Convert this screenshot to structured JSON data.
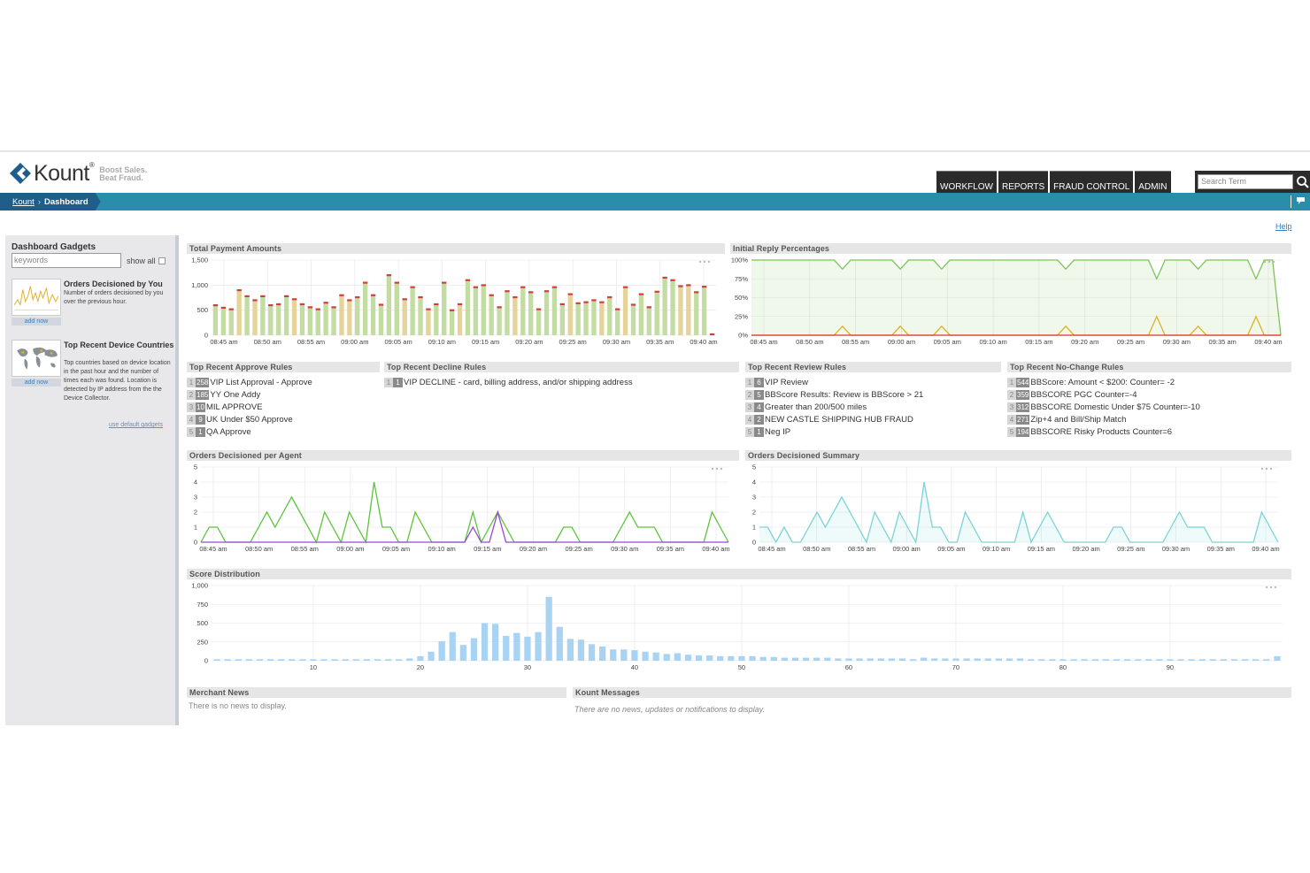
{
  "header": {
    "brand": "Kount",
    "tagline_1": "Boost Sales.",
    "tagline_2": "Beat Fraud.",
    "nav": [
      "WORKFLOW",
      "REPORTS",
      "FRAUD CONTROL",
      "ADMIN"
    ],
    "search_placeholder": "Search Term",
    "icons": {
      "search": "search-icon",
      "feedback": "comment-icon",
      "logo": "kount-logo-icon"
    }
  },
  "breadcrumb": {
    "root": "Kount",
    "current": "Dashboard"
  },
  "help_label": "Help",
  "sidebar": {
    "title": "Dashboard Gadgets",
    "search_placeholder": "keywords",
    "show_all_label": "show all",
    "gadgets": [
      {
        "title": "Orders Decisioned by You",
        "description": "Number of orders decisioned by you over the previous hour.",
        "add_label": "add now"
      },
      {
        "title": "Top Recent Device Countries",
        "description": "Top countries based on device location in the past hour and the number of times each was found. Location is detected by IP address from the the Device Collector.",
        "add_label": "add now"
      }
    ],
    "default_link": "use default gadgets"
  },
  "time_ticks": [
    "08:45 am",
    "08:50 am",
    "08:55 am",
    "09:00 am",
    "09:05 am",
    "09:10 am",
    "09:15 am",
    "09:20 am",
    "09:25 am",
    "09:30 am",
    "09:35 am",
    "09:40 am"
  ],
  "charts": {
    "payment": {
      "title": "Total Payment Amounts",
      "chart_data": {
        "type": "bar",
        "ylim": [
          0,
          1500
        ],
        "yticks": [
          "1,500",
          "1,000",
          "500",
          "0"
        ],
        "ytick_values": [
          1500,
          1000,
          500,
          0
        ],
        "values": [
          600,
          550,
          520,
          900,
          780,
          700,
          780,
          600,
          620,
          780,
          720,
          620,
          560,
          520,
          650,
          560,
          800,
          700,
          760,
          1050,
          800,
          610,
          1200,
          1050,
          720,
          960,
          760,
          520,
          620,
          1050,
          500,
          620,
          1100,
          960,
          1000,
          800,
          560,
          880,
          760,
          960,
          860,
          520,
          880,
          960,
          620,
          820,
          640,
          660,
          700,
          660,
          760,
          520,
          960,
          610,
          820,
          560,
          870,
          1150,
          1100,
          980,
          1000,
          860,
          970,
          20
        ],
        "grid": true
      }
    },
    "reply": {
      "title": "Initial Reply Percentages",
      "chart_data": {
        "type": "area",
        "ylim": [
          0,
          100
        ],
        "yticks": [
          "100%",
          "75%",
          "50%",
          "25%",
          "0%"
        ],
        "ytick_values": [
          100,
          75,
          50,
          25,
          0
        ],
        "series": [
          {
            "color": "#7cc45a",
            "values": [
              100,
              100,
              100,
              100,
              100,
              100,
              100,
              100,
              100,
              100,
              100,
              88,
              100,
              100,
              100,
              100,
              100,
              100,
              88,
              100,
              100,
              100,
              100,
              88,
              100,
              100,
              100,
              100,
              100,
              100,
              100,
              100,
              100,
              100,
              100,
              100,
              100,
              100,
              88,
              100,
              100,
              100,
              100,
              100,
              100,
              100,
              100,
              100,
              100,
              75,
              100,
              100,
              100,
              100,
              88,
              100,
              100,
              100,
              100,
              100,
              100,
              75,
              100,
              100,
              0
            ]
          },
          {
            "color": "#e0b020",
            "values": [
              0,
              0,
              0,
              0,
              0,
              0,
              0,
              0,
              0,
              0,
              0,
              12,
              0,
              0,
              0,
              0,
              0,
              0,
              12,
              0,
              0,
              0,
              0,
              12,
              0,
              0,
              0,
              0,
              0,
              0,
              0,
              0,
              0,
              0,
              0,
              0,
              0,
              0,
              12,
              0,
              0,
              0,
              0,
              0,
              0,
              0,
              0,
              0,
              0,
              25,
              0,
              0,
              0,
              0,
              12,
              0,
              0,
              0,
              0,
              0,
              0,
              25,
              0,
              0,
              0
            ]
          },
          {
            "color": "#e03030",
            "values": [
              0,
              0,
              0,
              0,
              0,
              0,
              0,
              0,
              0,
              0,
              0,
              0,
              0,
              0,
              0,
              0,
              0,
              0,
              0,
              0,
              0,
              0,
              0,
              0,
              0,
              0,
              0,
              0,
              0,
              0,
              0,
              0,
              0,
              0,
              0,
              0,
              0,
              0,
              0,
              0,
              0,
              0,
              0,
              0,
              0,
              0,
              0,
              0,
              0,
              0,
              0,
              0,
              0,
              0,
              0,
              0,
              0,
              0,
              0,
              0,
              0,
              0,
              0,
              0,
              0
            ]
          }
        ],
        "grid": true
      }
    },
    "agent": {
      "title": "Orders Decisioned per Agent",
      "chart_data": {
        "type": "line",
        "ylim": [
          0,
          5
        ],
        "yticks": [
          "5",
          "4",
          "3",
          "2",
          "1",
          "0"
        ],
        "ytick_values": [
          5,
          4,
          3,
          2,
          1,
          0
        ],
        "series": [
          {
            "color": "#5cc43a",
            "values": [
              0,
              1,
              1,
              0,
              0,
              0,
              0,
              1,
              2,
              1,
              2,
              3,
              2,
              1,
              0,
              2,
              1,
              0,
              2,
              1,
              0,
              4,
              1,
              1,
              0,
              0,
              2,
              1,
              0,
              0,
              0,
              0,
              0,
              2,
              0,
              1,
              2,
              1,
              0,
              0,
              0,
              0,
              0,
              0,
              1,
              1,
              0,
              0,
              0,
              0,
              0,
              1,
              2,
              1,
              1,
              1,
              0,
              0,
              0,
              0,
              0,
              0,
              2,
              1,
              0
            ]
          },
          {
            "color": "#9b44d9",
            "values": [
              0,
              0,
              0,
              0,
              0,
              0,
              0,
              0,
              0,
              0,
              0,
              0,
              0,
              0,
              0,
              0,
              0,
              0,
              0,
              0,
              0,
              0,
              0,
              0,
              0,
              0,
              0,
              0,
              0,
              0,
              0,
              0,
              0,
              1,
              0,
              0,
              2,
              0,
              0,
              0,
              0,
              0,
              0,
              0,
              0,
              0,
              0,
              0,
              0,
              0,
              0,
              0,
              0,
              0,
              0,
              0,
              0,
              0,
              0,
              0,
              0,
              0,
              0,
              0,
              0
            ]
          }
        ],
        "grid": true
      }
    },
    "summary": {
      "title": "Orders Decisioned Summary",
      "chart_data": {
        "type": "area",
        "ylim": [
          0,
          5
        ],
        "yticks": [
          "5",
          "4",
          "3",
          "2",
          "1",
          "0"
        ],
        "ytick_values": [
          5,
          4,
          3,
          2,
          1,
          0
        ],
        "series": [
          {
            "color": "#7ad3d8",
            "values": [
              1,
              1,
              0,
              1,
              0,
              0,
              1,
              2,
              1,
              2,
              3,
              2,
              1,
              0,
              2,
              1,
              0,
              2,
              1,
              0,
              4,
              1,
              1,
              0,
              0,
              2,
              1,
              0,
              0,
              0,
              0,
              0,
              2,
              0,
              1,
              2,
              1,
              0,
              0,
              0,
              0,
              0,
              0,
              1,
              1,
              0,
              0,
              0,
              0,
              0,
              1,
              2,
              1,
              1,
              1,
              0,
              0,
              0,
              0,
              0,
              0,
              2,
              1,
              0
            ]
          }
        ],
        "grid": true
      }
    },
    "score": {
      "title": "Score Distribution",
      "chart_data": {
        "type": "bar",
        "ylim": [
          0,
          1000
        ],
        "yticks": [
          "1,000",
          "750",
          "500",
          "250",
          "0"
        ],
        "ytick_values": [
          1000,
          750,
          500,
          250,
          0
        ],
        "xticks": [
          "10",
          "20",
          "30",
          "40",
          "50",
          "60",
          "70",
          "80",
          "90"
        ],
        "xtick_values": [
          10,
          20,
          30,
          40,
          50,
          60,
          70,
          80,
          90
        ],
        "x_start": 1,
        "values": [
          20,
          20,
          20,
          20,
          20,
          20,
          20,
          20,
          20,
          20,
          20,
          20,
          20,
          20,
          20,
          20,
          20,
          20,
          30,
          60,
          120,
          260,
          380,
          210,
          300,
          500,
          490,
          330,
          370,
          320,
          380,
          850,
          450,
          290,
          280,
          220,
          190,
          150,
          150,
          140,
          120,
          110,
          90,
          100,
          80,
          70,
          70,
          60,
          60,
          60,
          60,
          50,
          50,
          40,
          40,
          40,
          40,
          40,
          30,
          30,
          30,
          30,
          30,
          30,
          30,
          20,
          40,
          30,
          30,
          30,
          30,
          30,
          30,
          30,
          30,
          30,
          20,
          20,
          20,
          20,
          20,
          20,
          20,
          20,
          20,
          20,
          20,
          20,
          20,
          20,
          20,
          20,
          20,
          20,
          20,
          20,
          20,
          20,
          20,
          60
        ],
        "grid": true
      }
    }
  },
  "rules": {
    "approve": {
      "title": "Top Recent Approve Rules",
      "items": [
        {
          "rank": "1",
          "count": "258",
          "label": "VIP List Approval - Approve"
        },
        {
          "rank": "2",
          "count": "185",
          "label": "YY One Addy"
        },
        {
          "rank": "3",
          "count": "10",
          "label": "MIL APPROVE"
        },
        {
          "rank": "4",
          "count": "9",
          "label": "UK Under $50 Approve"
        },
        {
          "rank": "5",
          "count": "1",
          "label": "QA Approve"
        }
      ]
    },
    "decline": {
      "title": "Top Recent Decline Rules",
      "items": [
        {
          "rank": "1",
          "count": "1",
          "label": "VIP DECLINE - card, billing address, and/or shipping address"
        }
      ]
    },
    "review": {
      "title": "Top Recent Review Rules",
      "items": [
        {
          "rank": "1",
          "count": "6",
          "label": "VIP Review"
        },
        {
          "rank": "2",
          "count": "5",
          "label": "BBScore Results: Review is BBScore > 21"
        },
        {
          "rank": "3",
          "count": "4",
          "label": "Greater than 200/500 miles"
        },
        {
          "rank": "4",
          "count": "2",
          "label": "NEW CASTLE SHIPPING HUB FRAUD"
        },
        {
          "rank": "5",
          "count": "1",
          "label": "Neg IP"
        }
      ]
    },
    "nochange": {
      "title": "Top Recent No-Change Rules",
      "items": [
        {
          "rank": "1",
          "count": "544",
          "label": "BBScore: Amount < $200: Counter= -2"
        },
        {
          "rank": "2",
          "count": "359",
          "label": "BBSCORE PGC Counter=-4"
        },
        {
          "rank": "3",
          "count": "312",
          "label": "BBSCORE Domestic Under $75 Counter=-10"
        },
        {
          "rank": "4",
          "count": "271",
          "label": "Zip+4 and Bill/Ship Match"
        },
        {
          "rank": "5",
          "count": "194",
          "label": "BBSCORE Risky Products Counter=6"
        }
      ]
    }
  },
  "news": {
    "title": "Merchant News",
    "message": "There is no news to display."
  },
  "messages": {
    "title": "Kount Messages",
    "message": "There are no news, updates or notifications to display."
  }
}
